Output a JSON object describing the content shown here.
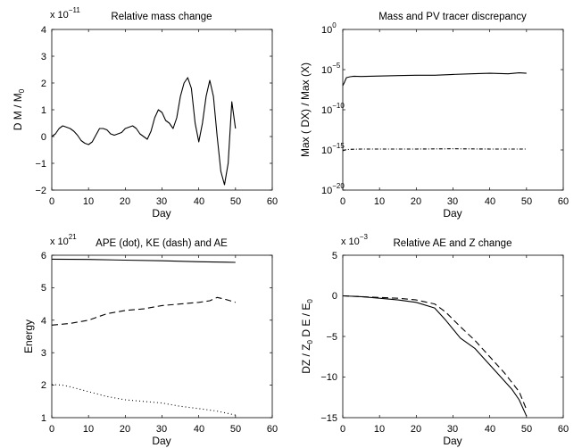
{
  "chart_data": [
    {
      "type": "line",
      "title": "Relative mass change",
      "xlabel": "Day",
      "ylabel": "D M / M_0",
      "y_multiplier": "x 10^-11",
      "xlim": [
        0,
        60
      ],
      "ylim": [
        -2,
        4
      ],
      "x_ticks": [
        "0",
        "10",
        "20",
        "30",
        "40",
        "50",
        "60"
      ],
      "y_ticks": [
        "−2",
        "−1",
        "0",
        "1",
        "2",
        "3",
        "4"
      ],
      "series": [
        {
          "style": "solid",
          "x": [
            0,
            1,
            2,
            3,
            4,
            5,
            6,
            7,
            8,
            9,
            10,
            11,
            12,
            13,
            14,
            15,
            16,
            17,
            18,
            19,
            20,
            21,
            22,
            23,
            24,
            25,
            26,
            27,
            28,
            29,
            30,
            31,
            32,
            33,
            34,
            35,
            36,
            37,
            38,
            39,
            40,
            41,
            42,
            43,
            44,
            45,
            46,
            47,
            48,
            49,
            50
          ],
          "y": [
            0.0,
            0.1,
            0.3,
            0.4,
            0.35,
            0.3,
            0.2,
            0.05,
            -0.15,
            -0.25,
            -0.3,
            -0.2,
            0.05,
            0.3,
            0.3,
            0.25,
            0.1,
            0.05,
            0.1,
            0.15,
            0.3,
            0.35,
            0.4,
            0.3,
            0.1,
            0.0,
            -0.1,
            0.2,
            0.7,
            1.0,
            0.9,
            0.6,
            0.5,
            0.3,
            0.7,
            1.5,
            2.0,
            2.2,
            1.8,
            0.5,
            -0.2,
            0.5,
            1.5,
            2.1,
            1.5,
            0.0,
            -1.3,
            -1.8,
            -1.0,
            1.3,
            0.3
          ]
        }
      ]
    },
    {
      "type": "line",
      "title": "Mass and PV tracer discrepancy",
      "xlabel": "Day",
      "ylabel": "Max ( DX) / Max (X)",
      "y_scale": "log",
      "xlim": [
        0,
        60
      ],
      "ylim": [
        1e-20,
        1
      ],
      "x_ticks": [
        "0",
        "10",
        "20",
        "30",
        "40",
        "50",
        "60"
      ],
      "y_ticks": [
        "10^-20",
        "10^-15",
        "10^-10",
        "10^-5",
        "10^0"
      ],
      "series": [
        {
          "style": "solid",
          "x": [
            0,
            0.5,
            1,
            2,
            3,
            5,
            10,
            15,
            20,
            25,
            30,
            35,
            40,
            45,
            48,
            50
          ],
          "y": [
            1e-07,
            3e-07,
            1e-06,
            1.3e-06,
            1.5e-06,
            1.4e-06,
            1.6e-06,
            1.8e-06,
            2e-06,
            2e-06,
            2.5e-06,
            3e-06,
            3.5e-06,
            3e-06,
            4e-06,
            3.5e-06
          ]
        },
        {
          "style": "dashdot",
          "x": [
            0,
            1,
            2,
            5,
            10,
            20,
            30,
            40,
            50
          ],
          "y": [
            8e-16,
            1.1e-15,
            1.2e-15,
            1.3e-15,
            1.3e-15,
            1.3e-15,
            1.4e-15,
            1.3e-15,
            1.3e-15
          ]
        }
      ]
    },
    {
      "type": "line",
      "title": "APE (dot), KE (dash) and AE",
      "xlabel": "Day",
      "ylabel": "Energy",
      "y_multiplier": "x 10^21",
      "xlim": [
        0,
        60
      ],
      "ylim": [
        1,
        6
      ],
      "x_ticks": [
        "0",
        "10",
        "20",
        "30",
        "40",
        "50",
        "60"
      ],
      "y_ticks": [
        "1",
        "2",
        "3",
        "4",
        "5",
        "6"
      ],
      "series": [
        {
          "style": "solid",
          "x": [
            0,
            10,
            20,
            30,
            40,
            50
          ],
          "y": [
            5.88,
            5.87,
            5.85,
            5.83,
            5.8,
            5.78
          ]
        },
        {
          "style": "dashed",
          "x": [
            0,
            5,
            10,
            15,
            20,
            25,
            30,
            35,
            40,
            43,
            45,
            47,
            50
          ],
          "y": [
            3.85,
            3.9,
            4.0,
            4.2,
            4.3,
            4.35,
            4.45,
            4.5,
            4.55,
            4.6,
            4.7,
            4.65,
            4.55
          ]
        },
        {
          "style": "dotted",
          "x": [
            0,
            3,
            5,
            10,
            15,
            20,
            25,
            30,
            35,
            40,
            45,
            50
          ],
          "y": [
            2.02,
            2.0,
            1.95,
            1.8,
            1.65,
            1.55,
            1.5,
            1.45,
            1.35,
            1.28,
            1.2,
            1.08
          ]
        }
      ]
    },
    {
      "type": "line",
      "title": "Relative AE and Z change",
      "xlabel": "Day",
      "ylabel": "DZ / Z_0      D E / E_0",
      "y_multiplier": "x 10^-3",
      "xlim": [
        0,
        60
      ],
      "ylim": [
        -15,
        5
      ],
      "x_ticks": [
        "0",
        "10",
        "20",
        "30",
        "40",
        "50",
        "60"
      ],
      "y_ticks": [
        "−15",
        "−10",
        "−5",
        "0",
        "5"
      ],
      "series": [
        {
          "style": "solid",
          "x": [
            0,
            5,
            10,
            15,
            20,
            25,
            28,
            32,
            36,
            38,
            42,
            46,
            48,
            50
          ],
          "y": [
            0,
            -0.1,
            -0.3,
            -0.5,
            -0.8,
            -1.5,
            -3.0,
            -5.2,
            -6.5,
            -7.5,
            -9.5,
            -11.5,
            -12.8,
            -14.8
          ]
        },
        {
          "style": "dashed",
          "x": [
            0,
            5,
            10,
            15,
            20,
            25,
            28,
            32,
            36,
            40,
            44,
            48,
            50
          ],
          "y": [
            0,
            -0.1,
            -0.2,
            -0.3,
            -0.5,
            -1.0,
            -2.0,
            -3.8,
            -5.5,
            -7.5,
            -9.5,
            -11.8,
            -14.0
          ]
        }
      ]
    }
  ]
}
